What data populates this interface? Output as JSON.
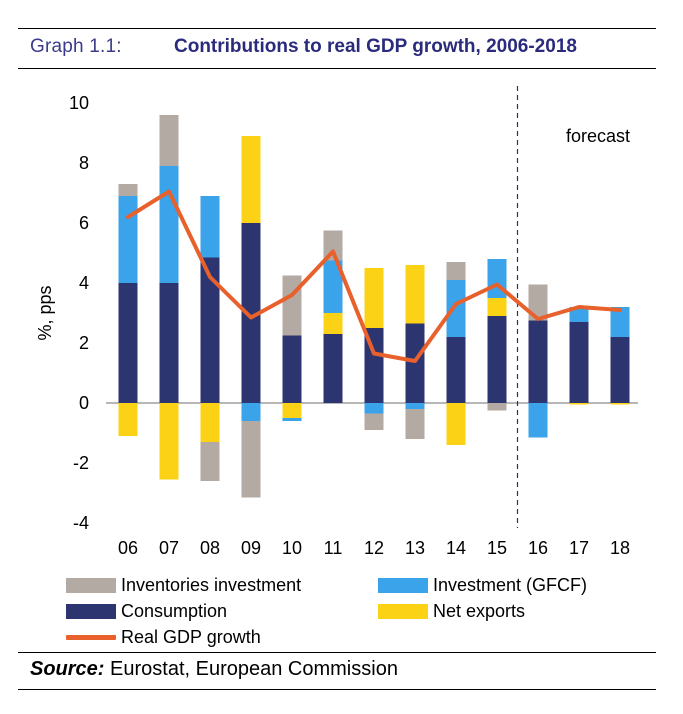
{
  "header": {
    "graph_label": "Graph 1.1:",
    "graph_title": "Contributions to real GDP growth, 2006-2018"
  },
  "source": {
    "label": "Source:",
    "text": "Eurostat, European Commission"
  },
  "colors": {
    "inventories": "#b3aaa4",
    "investment": "#3aa3e9",
    "consumption": "#2d3570",
    "net_exports": "#fbd216",
    "gdp_line": "#e8602c",
    "title": "#2b2b7e"
  },
  "chart_data": {
    "type": "bar",
    "stacked": true,
    "title": "Contributions to real GDP growth, 2006-2018",
    "xlabel": "",
    "ylabel": "%, pps",
    "ylim": [
      -4,
      10
    ],
    "yticks": [
      "-4",
      "-2",
      "0",
      "2",
      "4",
      "6",
      "8",
      "10"
    ],
    "categories": [
      "06",
      "07",
      "08",
      "09",
      "10",
      "11",
      "12",
      "13",
      "14",
      "15",
      "16",
      "17",
      "18"
    ],
    "forecast_annotation": "forecast",
    "forecast_start_after": "15",
    "series": [
      {
        "name": "Consumption",
        "key": "consumption",
        "values": [
          4.0,
          4.0,
          4.85,
          6.0,
          2.25,
          2.3,
          2.5,
          2.65,
          2.2,
          2.9,
          2.75,
          2.7,
          2.2
        ]
      },
      {
        "name": "Investment (GFCF)",
        "key": "investment",
        "values": [
          2.9,
          3.9,
          2.05,
          -0.6,
          -0.1,
          1.75,
          -0.35,
          -0.2,
          1.9,
          1.3,
          -1.15,
          0.5,
          1.0
        ]
      },
      {
        "name": "Inventories investment",
        "key": "inventories",
        "values": [
          0.4,
          1.7,
          -1.3,
          -2.55,
          2.0,
          1.0,
          -0.55,
          -1.0,
          0.6,
          -0.25,
          1.2,
          0.0,
          0.0
        ]
      },
      {
        "name": "Net exports",
        "key": "net_exports",
        "values": [
          -1.1,
          -2.55,
          -1.3,
          2.9,
          -0.5,
          0.7,
          2.0,
          1.95,
          -1.4,
          0.6,
          0.0,
          -0.05,
          -0.05
        ]
      }
    ],
    "line": {
      "name": "Real GDP growth",
      "key": "gdp_line",
      "values": [
        6.2,
        7.05,
        4.2,
        2.85,
        3.6,
        5.05,
        1.65,
        1.4,
        3.3,
        3.95,
        2.8,
        3.2,
        3.1
      ]
    }
  },
  "legend": {
    "inventories": "Inventories investment",
    "investment": "Investment (GFCF)",
    "consumption": "Consumption",
    "net_exports": "Net exports",
    "gdp_line": "Real GDP growth"
  }
}
